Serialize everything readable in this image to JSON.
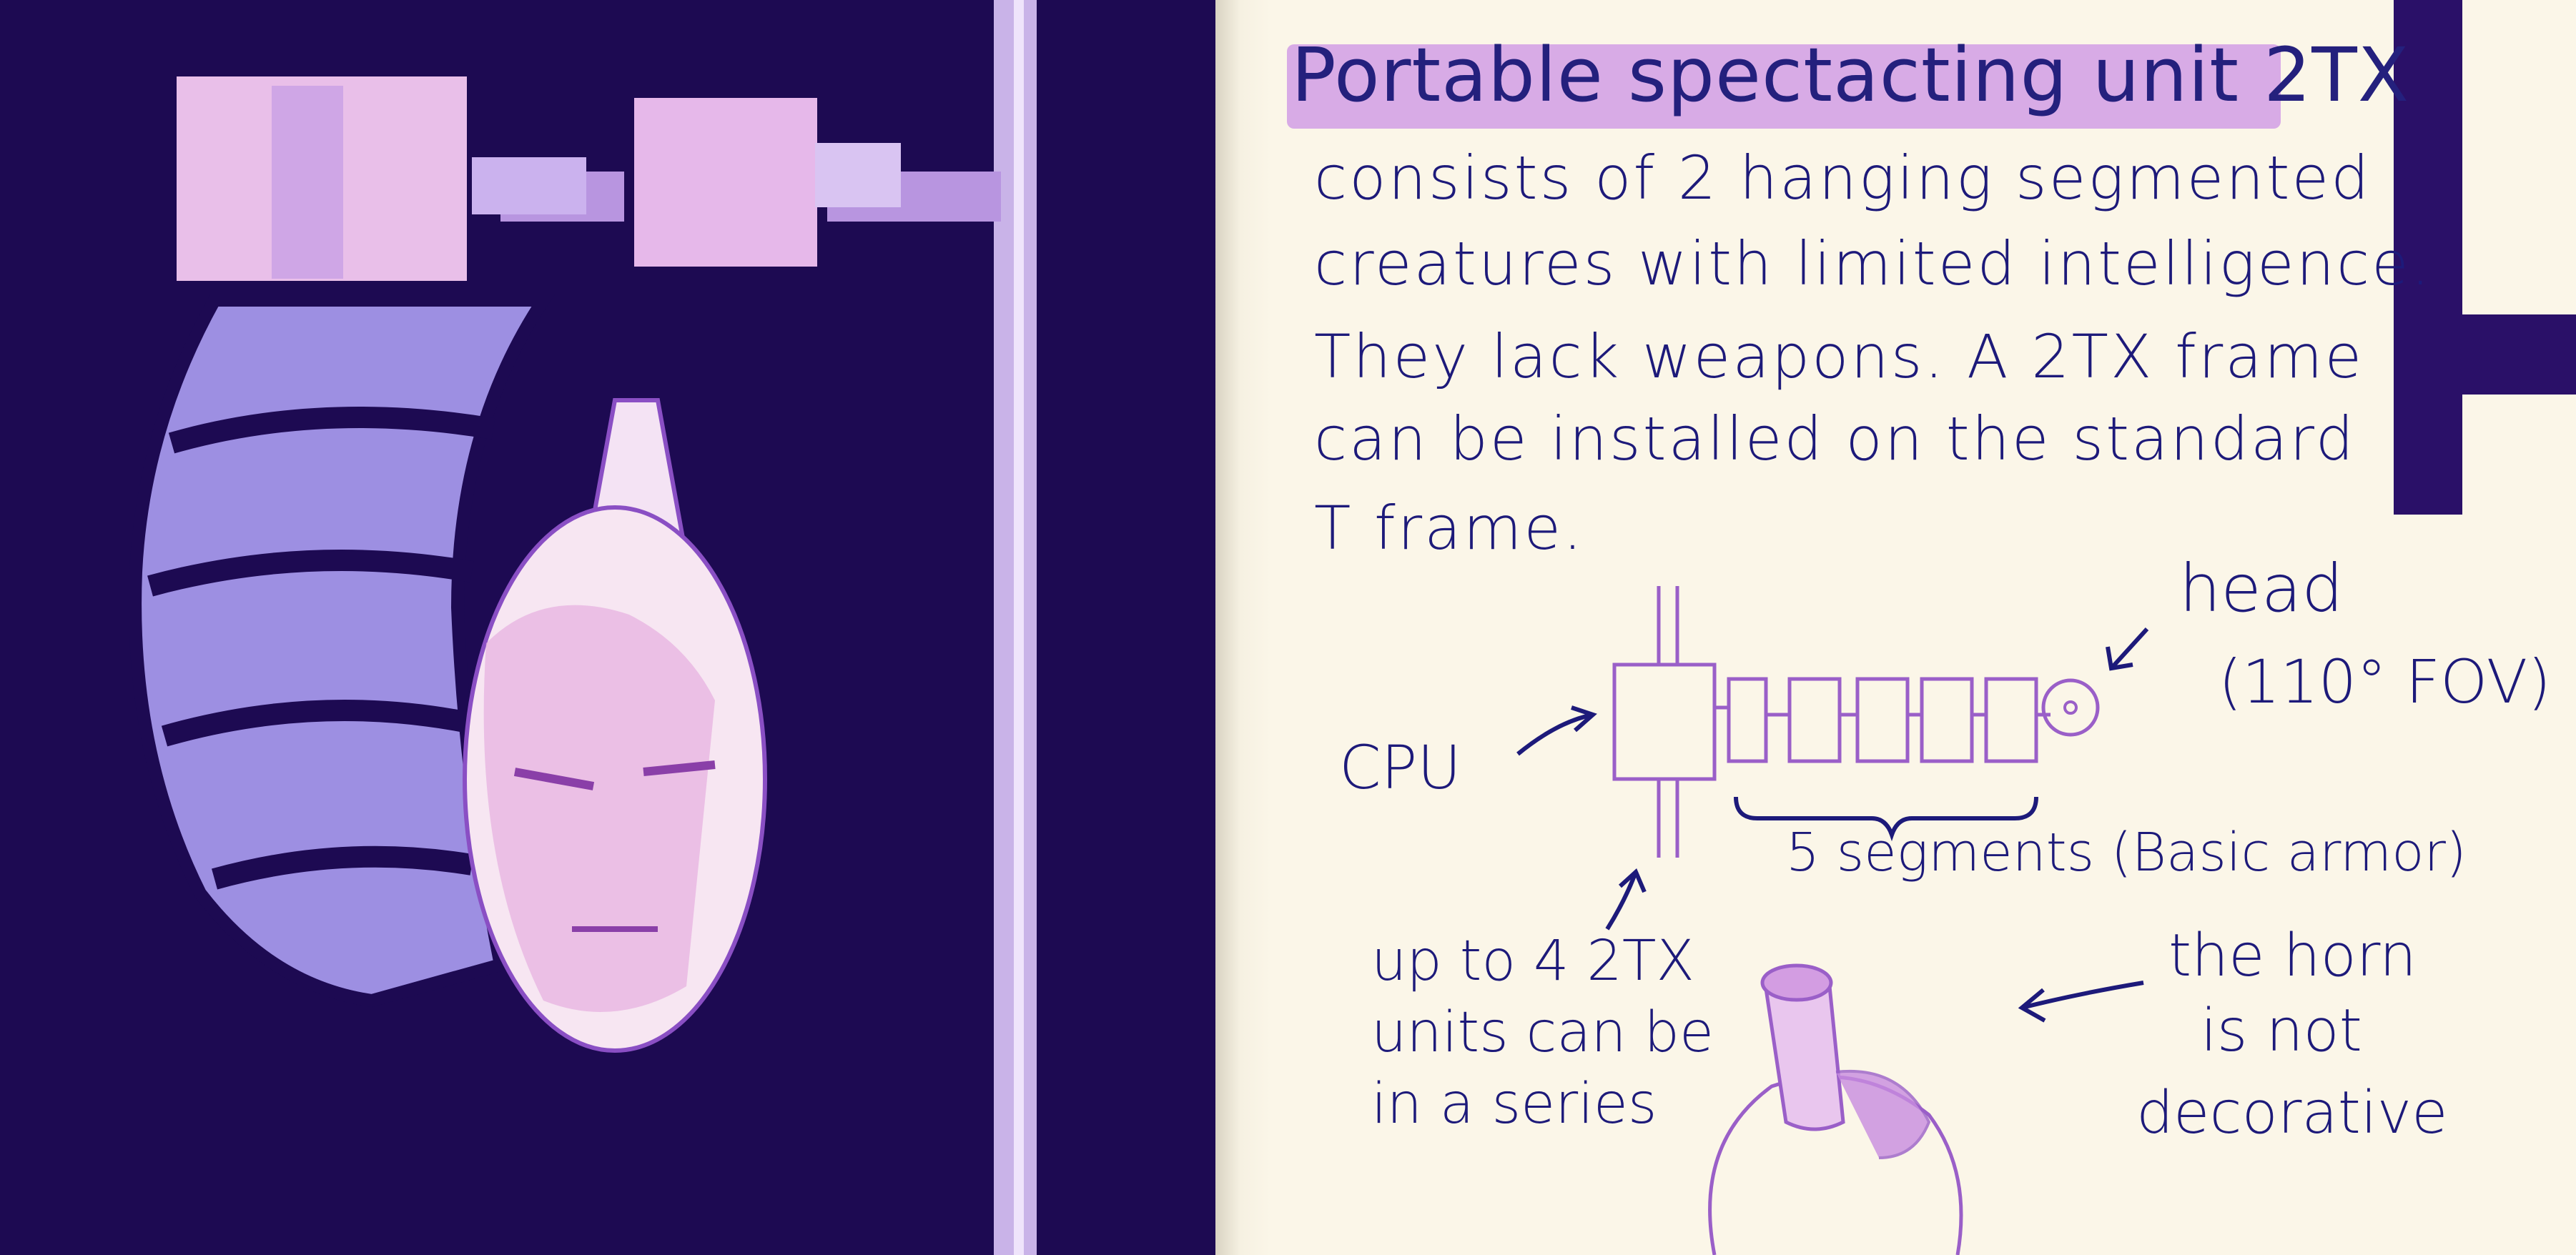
{
  "sketch": {
    "figure": "hanging segmented creature with face-shaped head"
  },
  "notes": {
    "title": "Portable spectacting unit 2TX",
    "body_lines": [
      "consists of 2 hanging segmented",
      "creatures with limited intelligence.",
      "They lack weapons. A 2TX frame",
      "can be installed on the standard",
      "T frame."
    ]
  },
  "diagram": {
    "head_label": "head",
    "fov_label": "(110° FOV)",
    "cpu_label": "CPU",
    "segments_label": "5 segments (Basic armor)",
    "series_lines": [
      "up to 4 2TX",
      "units can be",
      "in a series"
    ],
    "horn_lines": [
      "the horn",
      "is not",
      "decorative"
    ]
  },
  "colors": {
    "ink": "#1d1a7a",
    "highlight": "#d6a7e6",
    "dark_page": "#1d0a52",
    "paper": "#fbf6e8"
  }
}
